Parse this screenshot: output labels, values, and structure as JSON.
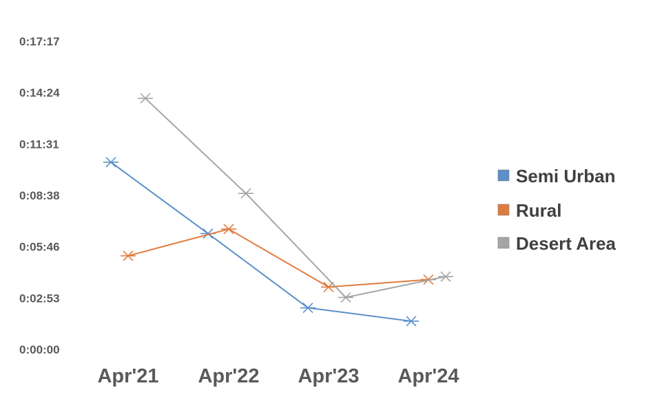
{
  "chart_data": {
    "type": "line",
    "title": "",
    "xlabel": "",
    "ylabel": "",
    "categories": [
      "Apr'21",
      "Apr'22",
      "Apr'23",
      "Apr'24"
    ],
    "y_ticks": [
      "0:00:00",
      "0:02:53",
      "0:05:46",
      "0:08:38",
      "0:11:31",
      "0:14:24",
      "0:17:17"
    ],
    "y_unit": "h:mm:ss",
    "ylim": [
      "0:00:00",
      "0:17:17"
    ],
    "grid": false,
    "legend_position": "right",
    "marker": "x-star",
    "series": [
      {
        "name": "Semi Urban",
        "color": "#5B8FC9",
        "x": [
          "Apr'21",
          "Apr'22",
          "Apr'23",
          "Apr'24"
        ],
        "y": [
          "0:10:30",
          "0:06:30",
          "0:02:20",
          "0:01:35"
        ]
      },
      {
        "name": "Rural",
        "color": "#E07B3F",
        "x": [
          "Apr'21",
          "Apr'22",
          "Apr'23",
          "Apr'24"
        ],
        "y": [
          "0:05:15",
          "0:06:45",
          "0:03:30",
          "0:03:55"
        ]
      },
      {
        "name": "Desert Area",
        "color": "#A5A5A5",
        "x": [
          "Apr'21",
          "Apr'22",
          "Apr'23",
          "Apr'24"
        ],
        "y": [
          "0:14:05",
          "0:08:45",
          "0:02:55",
          "0:04:05"
        ]
      }
    ]
  }
}
